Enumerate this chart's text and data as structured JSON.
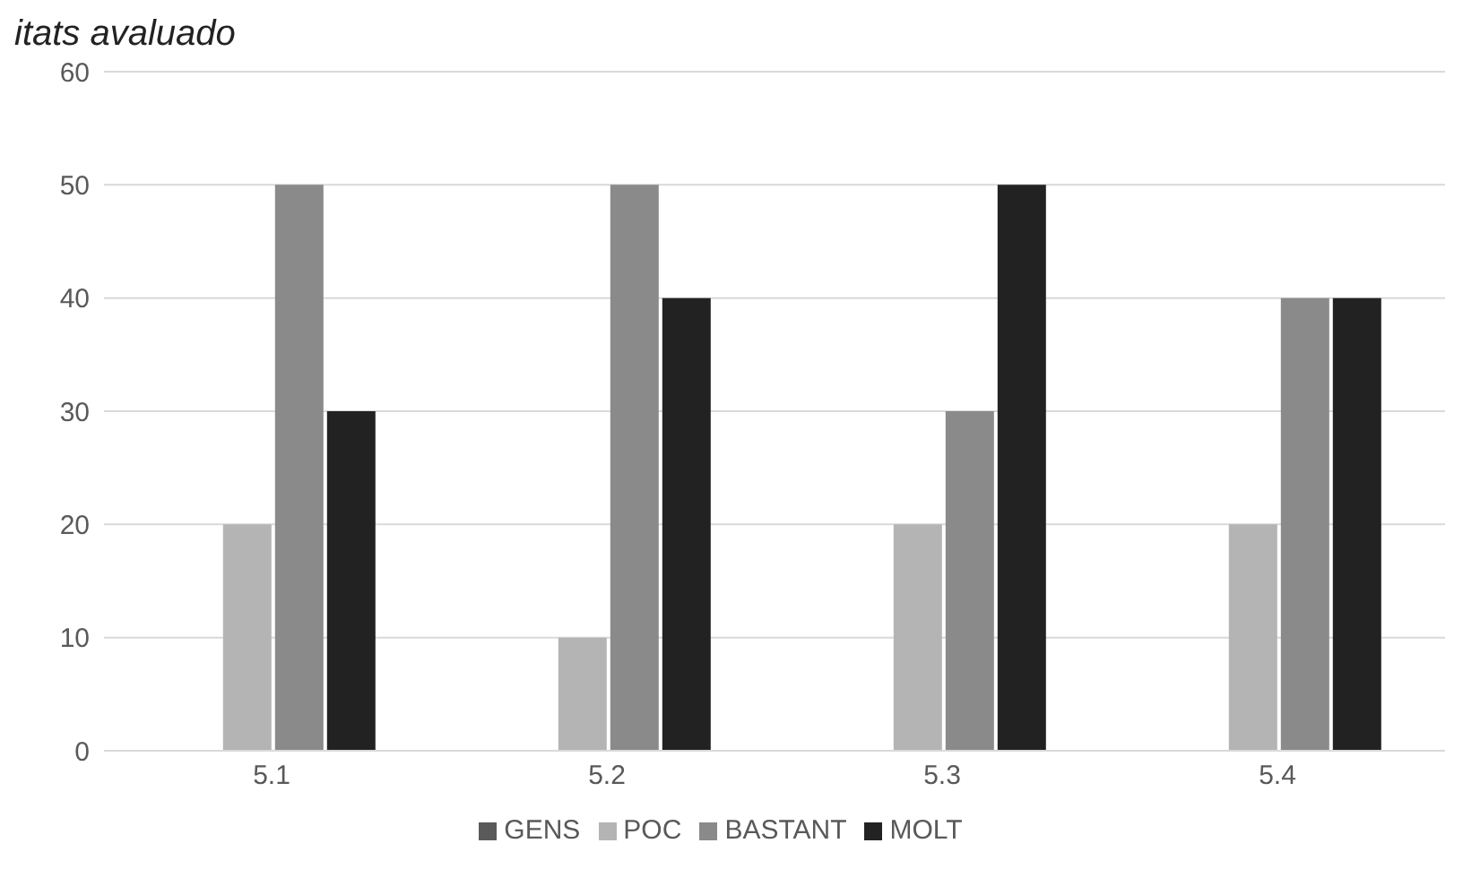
{
  "chart_data": {
    "type": "bar",
    "title": "itats avaluado",
    "categories": [
      "5.1",
      "5.2",
      "5.3",
      "5.4"
    ],
    "series": [
      {
        "name": "GENS",
        "color": "#5a5a5a",
        "values": [
          0,
          0,
          0,
          0
        ]
      },
      {
        "name": "POC",
        "color": "#b4b4b4",
        "values": [
          20,
          10,
          20,
          20
        ]
      },
      {
        "name": "BASTANT",
        "color": "#8a8a8a",
        "values": [
          50,
          50,
          30,
          40
        ]
      },
      {
        "name": "MOLT",
        "color": "#222222",
        "values": [
          30,
          40,
          50,
          40
        ]
      }
    ],
    "ylim": [
      0,
      60
    ],
    "yticks": [
      0,
      10,
      20,
      30,
      40,
      50,
      60
    ],
    "grid": "y",
    "legend": "bottom"
  }
}
